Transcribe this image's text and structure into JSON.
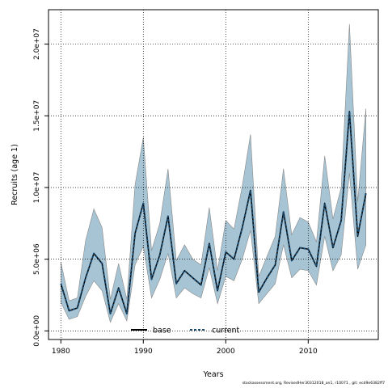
{
  "chart_data": {
    "type": "line",
    "title": "",
    "xlabel": "Years",
    "ylabel": "Recruits (age 1)",
    "xlim": [
      1978.5,
      2018.5
    ],
    "ylim": [
      -600000,
      22400000
    ],
    "xticks": [
      1980,
      1990,
      2000,
      2010
    ],
    "xtick_labels": [
      "1980",
      "1990",
      "2000",
      "2010"
    ],
    "yticks": [
      0,
      5000000,
      10000000,
      15000000,
      20000000
    ],
    "ytick_labels": [
      "0.0e+00",
      "5.0e+06",
      "1.0e+07",
      "1.5e+07",
      "2.0e+07"
    ],
    "grid": true,
    "legend_position": "bottom-center",
    "x": [
      1980,
      1981,
      1982,
      1983,
      1984,
      1985,
      1986,
      1987,
      1988,
      1989,
      1990,
      1991,
      1992,
      1993,
      1994,
      1995,
      1996,
      1997,
      1998,
      1999,
      2000,
      2001,
      2002,
      2003,
      2004,
      2005,
      2006,
      2007,
      2008,
      2009,
      2010,
      2011,
      2012,
      2013,
      2014,
      2015,
      2016,
      2017
    ],
    "series": [
      {
        "name": "base",
        "style": "solid",
        "color": "#000000",
        "values": [
          3300000,
          1400000,
          1600000,
          3700000,
          5400000,
          4700000,
          1200000,
          3000000,
          1200000,
          6800000,
          8900000,
          3600000,
          5300000,
          8000000,
          3300000,
          4200000,
          3700000,
          3200000,
          6100000,
          2800000,
          5500000,
          5000000,
          7200000,
          9800000,
          2700000,
          3700000,
          4600000,
          8300000,
          4900000,
          5800000,
          5700000,
          4500000,
          8900000,
          5800000,
          7700000,
          15300000,
          6600000,
          9600000
        ]
      },
      {
        "name": "current",
        "style": "dashed",
        "color": "#1a4a6e",
        "values": [
          3300000,
          1400000,
          1600000,
          3700000,
          5400000,
          4700000,
          1200000,
          3000000,
          1200000,
          6800000,
          8900000,
          3600000,
          5300000,
          8000000,
          3300000,
          4200000,
          3700000,
          3200000,
          6100000,
          2800000,
          5500000,
          5000000,
          7200000,
          9800000,
          2700000,
          3700000,
          4600000,
          8300000,
          4900000,
          5800000,
          5700000,
          4500000,
          8900000,
          5800000,
          7700000,
          15300000,
          6600000,
          9600000
        ]
      }
    ],
    "band": {
      "color": "#a6c4d4",
      "edge_color": "#888888",
      "upper": [
        4800000,
        2100000,
        2300000,
        6300000,
        8500000,
        7200000,
        2200000,
        4700000,
        2200000,
        10200000,
        13500000,
        5600000,
        7500000,
        11300000,
        4900000,
        6000000,
        5000000,
        4600000,
        8600000,
        4200000,
        7700000,
        7100000,
        10100000,
        13700000,
        3800000,
        5200000,
        6600000,
        11300000,
        6700000,
        7900000,
        7600000,
        6200000,
        12200000,
        7800000,
        10000000,
        21400000,
        9000000,
        15500000
      ],
      "lower": [
        2000000,
        800000,
        1000000,
        2400000,
        3500000,
        2800000,
        600000,
        1900000,
        700000,
        4600000,
        5900000,
        2300000,
        3600000,
        5400000,
        2300000,
        3000000,
        2600000,
        2300000,
        4400000,
        1900000,
        3800000,
        3500000,
        5000000,
        7000000,
        1900000,
        2600000,
        3300000,
        6000000,
        3700000,
        4300000,
        4200000,
        3200000,
        6600000,
        4200000,
        5300000,
        11000000,
        4300000,
        6000000
      ]
    }
  },
  "footer_text": "stockassessment.org, RevisedHer30312018_an1, r10071 , git: ecd9e6382ff7"
}
